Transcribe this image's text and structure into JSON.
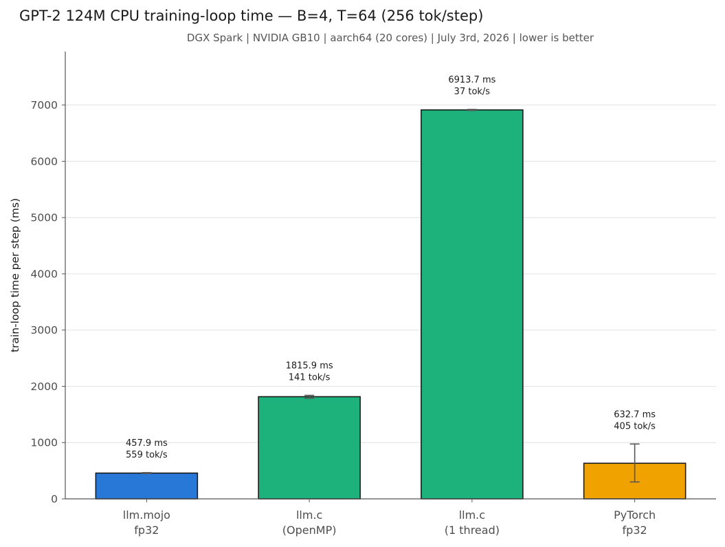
{
  "chart_data": {
    "type": "bar",
    "title": "GPT-2 124M CPU training-loop time — B=4, T=64  (256 tok/step)",
    "subtitle": "DGX Spark  |  NVIDIA GB10  |  aarch64 (20 cores)  |  July 3rd, 2026  |  lower is better",
    "xlabel": "",
    "ylabel": "train-loop time per step (ms)",
    "ylim": [
      0,
      7950
    ],
    "yticks": [
      0,
      1000,
      2000,
      3000,
      4000,
      5000,
      6000,
      7000
    ],
    "grid": true,
    "categories": [
      [
        "llm.mojo",
        "fp32"
      ],
      [
        "llm.c",
        "(OpenMP)"
      ],
      [
        "llm.c",
        "(1 thread)"
      ],
      [
        "PyTorch",
        "fp32"
      ]
    ],
    "values": [
      457.9,
      1815.9,
      6913.7,
      632.7
    ],
    "error_low": [
      450,
      1790,
      6905,
      300
    ],
    "error_high": [
      466,
      1840,
      6922,
      975
    ],
    "colors": [
      "#2878d8",
      "#1db27b",
      "#1db27b",
      "#f0a300"
    ],
    "data_labels": [
      [
        "457.9 ms",
        "559 tok/s"
      ],
      [
        "1815.9 ms",
        "141 tok/s"
      ],
      [
        "6913.7 ms",
        "37 tok/s"
      ],
      [
        "632.7 ms",
        "405 tok/s"
      ]
    ]
  }
}
